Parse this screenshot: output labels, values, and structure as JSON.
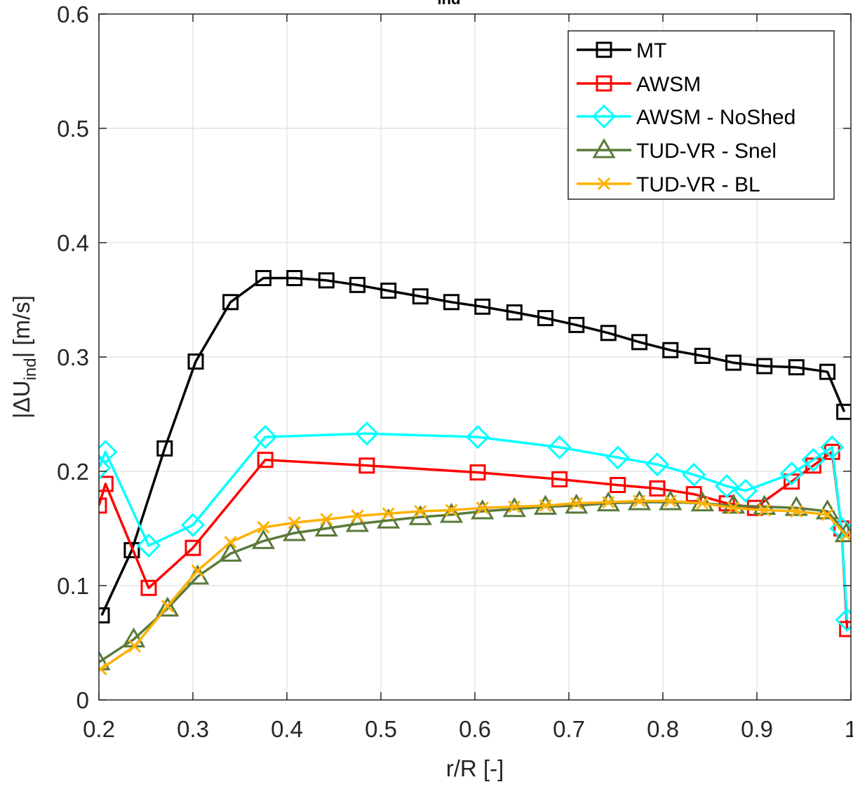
{
  "chart_data": {
    "type": "line",
    "title_prefix": "",
    "title_sub": "ind",
    "xlabel": "r/R [-]",
    "ylabel": {
      "prefix": "|ΔU",
      "sub": "ind",
      "suffix": "| [m/s]"
    },
    "xlim": [
      0.2,
      1.0
    ],
    "ylim": [
      0,
      0.6
    ],
    "xticks": [
      "0.2",
      "0.3",
      "0.4",
      "0.5",
      "0.6",
      "0.7",
      "0.8",
      "0.9",
      "1"
    ],
    "yticks": [
      "0",
      "0.1",
      "0.2",
      "0.3",
      "0.4",
      "0.5",
      "0.6"
    ],
    "grid": true,
    "legend_position": "top-right",
    "series": [
      {
        "name": "MT",
        "color": "#000000",
        "marker": "square",
        "points": [
          [
            0.203,
            0.074
          ],
          [
            0.235,
            0.131
          ],
          [
            0.27,
            0.22
          ],
          [
            0.303,
            0.296
          ],
          [
            0.34,
            0.348
          ],
          [
            0.375,
            0.369
          ],
          [
            0.408,
            0.369
          ],
          [
            0.442,
            0.367
          ],
          [
            0.475,
            0.363
          ],
          [
            0.508,
            0.358
          ],
          [
            0.542,
            0.353
          ],
          [
            0.575,
            0.348
          ],
          [
            0.608,
            0.344
          ],
          [
            0.642,
            0.339
          ],
          [
            0.675,
            0.334
          ],
          [
            0.708,
            0.328
          ],
          [
            0.742,
            0.321
          ],
          [
            0.775,
            0.313
          ],
          [
            0.808,
            0.306
          ],
          [
            0.842,
            0.301
          ],
          [
            0.875,
            0.295
          ],
          [
            0.908,
            0.292
          ],
          [
            0.942,
            0.291
          ],
          [
            0.975,
            0.287
          ],
          [
            0.993,
            0.252
          ]
        ]
      },
      {
        "name": "AWSM",
        "color": "#ff0000",
        "marker": "square",
        "points": [
          [
            0.2,
            0.17
          ],
          [
            0.207,
            0.189
          ],
          [
            0.253,
            0.098
          ],
          [
            0.3,
            0.133
          ],
          [
            0.377,
            0.21
          ],
          [
            0.485,
            0.205
          ],
          [
            0.603,
            0.199
          ],
          [
            0.69,
            0.193
          ],
          [
            0.752,
            0.188
          ],
          [
            0.794,
            0.185
          ],
          [
            0.833,
            0.18
          ],
          [
            0.868,
            0.172
          ],
          [
            0.898,
            0.168
          ],
          [
            0.937,
            0.191
          ],
          [
            0.96,
            0.205
          ],
          [
            0.98,
            0.217
          ],
          [
            0.99,
            0.15
          ],
          [
            0.996,
            0.062
          ]
        ]
      },
      {
        "name": "AWSM - NoShed",
        "color": "#00ffff",
        "marker": "diamond",
        "points": [
          [
            0.2,
            0.203
          ],
          [
            0.207,
            0.217
          ],
          [
            0.253,
            0.135
          ],
          [
            0.3,
            0.153
          ],
          [
            0.377,
            0.23
          ],
          [
            0.485,
            0.233
          ],
          [
            0.603,
            0.23
          ],
          [
            0.69,
            0.221
          ],
          [
            0.752,
            0.212
          ],
          [
            0.794,
            0.206
          ],
          [
            0.833,
            0.197
          ],
          [
            0.868,
            0.187
          ],
          [
            0.888,
            0.183
          ],
          [
            0.937,
            0.198
          ],
          [
            0.96,
            0.21
          ],
          [
            0.98,
            0.221
          ],
          [
            0.99,
            0.15
          ],
          [
            0.996,
            0.07
          ]
        ]
      },
      {
        "name": "TUD-VR - Snel",
        "color": "#5a7a3a",
        "marker": "triangle",
        "points": [
          [
            0.2,
            0.033
          ],
          [
            0.237,
            0.053
          ],
          [
            0.273,
            0.08
          ],
          [
            0.305,
            0.108
          ],
          [
            0.34,
            0.128
          ],
          [
            0.375,
            0.139
          ],
          [
            0.408,
            0.146
          ],
          [
            0.442,
            0.15
          ],
          [
            0.475,
            0.154
          ],
          [
            0.508,
            0.157
          ],
          [
            0.542,
            0.16
          ],
          [
            0.575,
            0.162
          ],
          [
            0.608,
            0.165
          ],
          [
            0.642,
            0.167
          ],
          [
            0.675,
            0.169
          ],
          [
            0.708,
            0.17
          ],
          [
            0.742,
            0.172
          ],
          [
            0.775,
            0.173
          ],
          [
            0.808,
            0.173
          ],
          [
            0.842,
            0.172
          ],
          [
            0.875,
            0.17
          ],
          [
            0.908,
            0.169
          ],
          [
            0.942,
            0.168
          ],
          [
            0.975,
            0.165
          ],
          [
            0.995,
            0.145
          ]
        ]
      },
      {
        "name": "TUD-VR - BL",
        "color": "#ffb000",
        "marker": "x",
        "points": [
          [
            0.202,
            0.027
          ],
          [
            0.238,
            0.047
          ],
          [
            0.273,
            0.082
          ],
          [
            0.305,
            0.113
          ],
          [
            0.34,
            0.138
          ],
          [
            0.375,
            0.151
          ],
          [
            0.408,
            0.155
          ],
          [
            0.442,
            0.158
          ],
          [
            0.475,
            0.161
          ],
          [
            0.508,
            0.163
          ],
          [
            0.542,
            0.165
          ],
          [
            0.575,
            0.166
          ],
          [
            0.608,
            0.168
          ],
          [
            0.642,
            0.169
          ],
          [
            0.675,
            0.17
          ],
          [
            0.708,
            0.172
          ],
          [
            0.742,
            0.173
          ],
          [
            0.775,
            0.174
          ],
          [
            0.808,
            0.174
          ],
          [
            0.842,
            0.172
          ],
          [
            0.875,
            0.168
          ],
          [
            0.908,
            0.166
          ],
          [
            0.942,
            0.165
          ],
          [
            0.975,
            0.162
          ],
          [
            0.995,
            0.144
          ]
        ]
      }
    ]
  }
}
